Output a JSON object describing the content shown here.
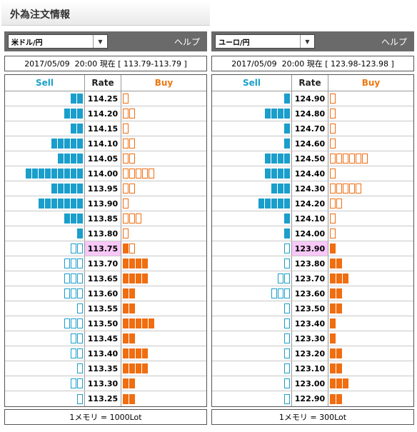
{
  "page_title": "外為注文情報",
  "colors": {
    "sell_fill": "#1a9ecb",
    "buy_fill": "#f06d10",
    "current_rate_bg": "#f7c8f7",
    "header_bg": "#6a6a6a"
  },
  "panels": [
    {
      "pair": "米ドル/円",
      "help": "ヘルプ",
      "status": "2017/05/09  20:00 現在 [ 113.79-113.79 ]",
      "headers": {
        "sell": "Sell",
        "rate": "Rate",
        "buy": "Buy"
      },
      "footer": "1メモリ = 1000Lot",
      "current_rate": "113.75",
      "rows": [
        {
          "rate": "114.25",
          "sell": 2,
          "sell_style": "filled",
          "buy": 1,
          "buy_style": "outline"
        },
        {
          "rate": "114.20",
          "sell": 3,
          "sell_style": "filled",
          "buy": 2,
          "buy_style": "outline"
        },
        {
          "rate": "114.15",
          "sell": 2,
          "sell_style": "filled",
          "buy": 1,
          "buy_style": "outline"
        },
        {
          "rate": "114.10",
          "sell": 5,
          "sell_style": "filled",
          "buy": 2,
          "buy_style": "outline"
        },
        {
          "rate": "114.05",
          "sell": 4,
          "sell_style": "filled",
          "buy": 2,
          "buy_style": "outline"
        },
        {
          "rate": "114.00",
          "sell": 9,
          "sell_style": "filled",
          "buy": 5,
          "buy_style": "outline"
        },
        {
          "rate": "113.95",
          "sell": 5,
          "sell_style": "filled",
          "buy": 2,
          "buy_style": "outline"
        },
        {
          "rate": "113.90",
          "sell": 7,
          "sell_style": "filled",
          "buy": 1,
          "buy_style": "outline"
        },
        {
          "rate": "113.85",
          "sell": 3,
          "sell_style": "filled",
          "buy": 3,
          "buy_style": "outline"
        },
        {
          "rate": "113.80",
          "sell": 1,
          "sell_style": "filled",
          "buy": 1,
          "buy_style": "outline"
        },
        {
          "rate": "113.75",
          "sell": 2,
          "sell_style": "outline",
          "buy": 1,
          "buy_style": "filled",
          "buy_extra_outline": 1
        },
        {
          "rate": "113.70",
          "sell": 3,
          "sell_style": "outline",
          "buy": 4,
          "buy_style": "filled"
        },
        {
          "rate": "113.65",
          "sell": 3,
          "sell_style": "outline",
          "buy": 4,
          "buy_style": "filled"
        },
        {
          "rate": "113.60",
          "sell": 3,
          "sell_style": "outline",
          "buy": 2,
          "buy_style": "filled"
        },
        {
          "rate": "113.55",
          "sell": 1,
          "sell_style": "outline",
          "buy": 2,
          "buy_style": "filled"
        },
        {
          "rate": "113.50",
          "sell": 3,
          "sell_style": "outline",
          "buy": 5,
          "buy_style": "filled"
        },
        {
          "rate": "113.45",
          "sell": 2,
          "sell_style": "outline",
          "buy": 2,
          "buy_style": "filled"
        },
        {
          "rate": "113.40",
          "sell": 2,
          "sell_style": "outline",
          "buy": 4,
          "buy_style": "filled"
        },
        {
          "rate": "113.35",
          "sell": 1,
          "sell_style": "outline",
          "buy": 4,
          "buy_style": "filled"
        },
        {
          "rate": "113.30",
          "sell": 2,
          "sell_style": "outline",
          "buy": 2,
          "buy_style": "filled"
        },
        {
          "rate": "113.25",
          "sell": 1,
          "sell_style": "outline",
          "buy": 2,
          "buy_style": "filled"
        }
      ]
    },
    {
      "pair": "ユーロ/円",
      "help": "ヘルプ",
      "status": "2017/05/09  20:00 現在 [ 123.98-123.98 ]",
      "headers": {
        "sell": "Sell",
        "rate": "Rate",
        "buy": "Buy"
      },
      "footer": "1メモリ = 300Lot",
      "current_rate": "123.90",
      "rows": [
        {
          "rate": "124.90",
          "sell": 1,
          "sell_style": "filled",
          "buy": 1,
          "buy_style": "outline"
        },
        {
          "rate": "124.80",
          "sell": 4,
          "sell_style": "filled",
          "buy": 1,
          "buy_style": "outline"
        },
        {
          "rate": "124.70",
          "sell": 1,
          "sell_style": "filled",
          "buy": 1,
          "buy_style": "outline"
        },
        {
          "rate": "124.60",
          "sell": 1,
          "sell_style": "filled",
          "buy": 1,
          "buy_style": "outline"
        },
        {
          "rate": "124.50",
          "sell": 4,
          "sell_style": "filled",
          "buy": 6,
          "buy_style": "outline"
        },
        {
          "rate": "124.40",
          "sell": 4,
          "sell_style": "filled",
          "buy": 1,
          "buy_style": "outline"
        },
        {
          "rate": "124.30",
          "sell": 3,
          "sell_style": "filled",
          "buy": 5,
          "buy_style": "outline"
        },
        {
          "rate": "124.20",
          "sell": 5,
          "sell_style": "filled",
          "buy": 2,
          "buy_style": "outline"
        },
        {
          "rate": "124.10",
          "sell": 1,
          "sell_style": "filled",
          "buy": 1,
          "buy_style": "outline"
        },
        {
          "rate": "124.00",
          "sell": 1,
          "sell_style": "filled",
          "buy": 1,
          "buy_style": "outline"
        },
        {
          "rate": "123.90",
          "sell": 1,
          "sell_style": "outline",
          "buy": 1,
          "buy_style": "filled"
        },
        {
          "rate": "123.80",
          "sell": 1,
          "sell_style": "outline",
          "buy": 2,
          "buy_style": "filled"
        },
        {
          "rate": "123.70",
          "sell": 2,
          "sell_style": "outline",
          "buy": 3,
          "buy_style": "filled"
        },
        {
          "rate": "123.60",
          "sell": 3,
          "sell_style": "outline",
          "buy": 2,
          "buy_style": "filled"
        },
        {
          "rate": "123.50",
          "sell": 1,
          "sell_style": "outline",
          "buy": 2,
          "buy_style": "filled"
        },
        {
          "rate": "123.40",
          "sell": 1,
          "sell_style": "outline",
          "buy": 1,
          "buy_style": "filled"
        },
        {
          "rate": "123.30",
          "sell": 1,
          "sell_style": "outline",
          "buy": 1,
          "buy_style": "filled"
        },
        {
          "rate": "123.20",
          "sell": 1,
          "sell_style": "outline",
          "buy": 2,
          "buy_style": "filled"
        },
        {
          "rate": "123.10",
          "sell": 1,
          "sell_style": "outline",
          "buy": 2,
          "buy_style": "filled"
        },
        {
          "rate": "123.00",
          "sell": 1,
          "sell_style": "outline",
          "buy": 3,
          "buy_style": "filled"
        },
        {
          "rate": "122.90",
          "sell": 1,
          "sell_style": "outline",
          "buy": 2,
          "buy_style": "filled"
        }
      ]
    }
  ]
}
